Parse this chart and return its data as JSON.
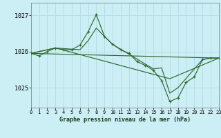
{
  "background_color": "#cceef5",
  "grid_color": "#b8dde6",
  "line_color": "#2d6a2d",
  "marker_color": "#2d6a2d",
  "title": "Graphe pression niveau de la mer (hPa)",
  "yticks": [
    1025,
    1026,
    1027
  ],
  "xlim": [
    0,
    23
  ],
  "ylim": [
    1024.45,
    1027.35
  ],
  "series": [
    {
      "x": [
        0,
        1,
        2,
        3,
        4,
        5,
        6,
        7,
        8,
        9,
        10,
        11,
        12,
        13,
        14,
        15,
        16,
        17,
        18,
        19,
        20,
        21,
        22,
        23
      ],
      "y": [
        1025.95,
        1025.88,
        1026.0,
        1026.1,
        1026.05,
        1026.05,
        1026.18,
        1026.55,
        1027.02,
        1026.42,
        1026.2,
        1026.05,
        1025.95,
        1025.72,
        1025.62,
        1025.48,
        1025.2,
        1024.62,
        1024.72,
        1025.15,
        1025.3,
        1025.78,
        1025.82,
        1025.82
      ],
      "has_markers": true
    },
    {
      "x": [
        0,
        3,
        6,
        7,
        8,
        9,
        10,
        15,
        16,
        17,
        18,
        21,
        22,
        23
      ],
      "y": [
        1025.95,
        1026.1,
        1026.05,
        1026.3,
        1026.65,
        1026.42,
        1026.2,
        1025.52,
        1025.55,
        1024.85,
        1025.0,
        1025.78,
        1025.82,
        1025.82
      ],
      "has_markers": false
    },
    {
      "x": [
        0,
        3,
        17,
        23
      ],
      "y": [
        1025.95,
        1026.1,
        1025.25,
        1025.82
      ],
      "has_markers": false
    },
    {
      "x": [
        0,
        23
      ],
      "y": [
        1025.95,
        1025.82
      ],
      "has_markers": false
    }
  ],
  "xtick_labels": [
    "0",
    "1",
    "2",
    "3",
    "4",
    "5",
    "6",
    "7",
    "8",
    "9",
    "10",
    "11",
    "12",
    "13",
    "14",
    "15",
    "16",
    "17",
    "18",
    "19",
    "20",
    "21",
    "22",
    "23"
  ]
}
